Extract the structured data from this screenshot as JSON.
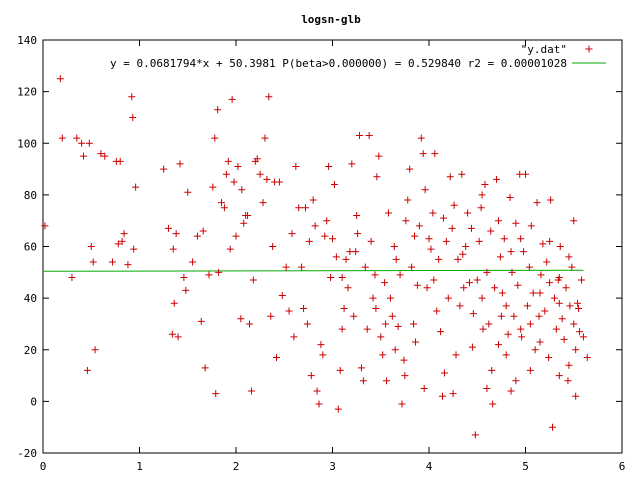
{
  "chart_data": {
    "type": "scatter",
    "title": "logsn-glb",
    "xlabel": "",
    "ylabel": "",
    "xlim": [
      0,
      6
    ],
    "ylim": [
      -20,
      140
    ],
    "x_ticks": [
      "0",
      "1",
      "2",
      "3",
      "4",
      "5",
      "6"
    ],
    "y_ticks": [
      "-20",
      "0",
      "20",
      "40",
      "60",
      "80",
      "100",
      "120",
      "140"
    ],
    "grid": false,
    "legend_position": "top-right",
    "legend": [
      {
        "label": "\"y.dat\"",
        "marker": "plus",
        "color": "#cc0000"
      },
      {
        "label": "y = 0.0681794*x + 50.3981 P(beta>0.000000) = 0.529840 r2 = 0.00001028",
        "marker": "line",
        "color": "#00aa00"
      }
    ],
    "fit_line": {
      "slope": 0.0681794,
      "intercept": 50.3981,
      "x_range": [
        0,
        5.6
      ]
    },
    "series": [
      {
        "name": "\"y.dat\"",
        "color": "#cc0000",
        "points": [
          [
            0.02,
            68
          ],
          [
            0.18,
            125
          ],
          [
            0.2,
            102
          ],
          [
            0.3,
            48
          ],
          [
            0.35,
            102
          ],
          [
            0.4,
            100
          ],
          [
            0.42,
            95
          ],
          [
            0.46,
            12
          ],
          [
            0.48,
            100
          ],
          [
            0.5,
            60
          ],
          [
            0.52,
            54
          ],
          [
            0.54,
            20
          ],
          [
            0.6,
            96
          ],
          [
            0.64,
            95
          ],
          [
            0.72,
            54
          ],
          [
            0.76,
            93
          ],
          [
            0.78,
            61
          ],
          [
            0.8,
            93
          ],
          [
            0.82,
            62
          ],
          [
            0.84,
            65
          ],
          [
            0.88,
            53
          ],
          [
            0.92,
            118
          ],
          [
            0.93,
            110
          ],
          [
            0.94,
            59
          ],
          [
            0.96,
            83
          ],
          [
            1.25,
            90
          ],
          [
            1.3,
            67
          ],
          [
            1.34,
            26
          ],
          [
            1.35,
            59
          ],
          [
            1.36,
            38
          ],
          [
            1.38,
            65
          ],
          [
            1.4,
            25
          ],
          [
            1.42,
            92
          ],
          [
            1.46,
            48
          ],
          [
            1.48,
            43
          ],
          [
            1.5,
            81
          ],
          [
            1.55,
            54
          ],
          [
            1.6,
            64
          ],
          [
            1.64,
            31
          ],
          [
            1.66,
            66
          ],
          [
            1.68,
            13
          ],
          [
            1.72,
            49
          ],
          [
            1.76,
            83
          ],
          [
            1.78,
            102
          ],
          [
            1.79,
            3
          ],
          [
            1.81,
            113
          ],
          [
            1.82,
            50
          ],
          [
            1.85,
            77
          ],
          [
            1.88,
            75
          ],
          [
            1.9,
            88
          ],
          [
            1.92,
            93
          ],
          [
            1.94,
            59
          ],
          [
            1.96,
            117
          ],
          [
            1.98,
            85
          ],
          [
            2.0,
            64
          ],
          [
            2.02,
            91
          ],
          [
            2.05,
            32
          ],
          [
            2.06,
            82
          ],
          [
            2.08,
            69
          ],
          [
            2.1,
            72
          ],
          [
            2.12,
            72
          ],
          [
            2.14,
            30
          ],
          [
            2.16,
            4
          ],
          [
            2.18,
            47
          ],
          [
            2.2,
            93
          ],
          [
            2.22,
            94
          ],
          [
            2.25,
            88
          ],
          [
            2.28,
            77
          ],
          [
            2.3,
            102
          ],
          [
            2.32,
            86
          ],
          [
            2.34,
            118
          ],
          [
            2.36,
            33
          ],
          [
            2.38,
            60
          ],
          [
            2.4,
            85
          ],
          [
            2.42,
            17
          ],
          [
            2.45,
            85
          ],
          [
            2.48,
            41
          ],
          [
            2.52,
            52
          ],
          [
            2.55,
            35
          ],
          [
            2.58,
            65
          ],
          [
            2.6,
            25
          ],
          [
            2.62,
            91
          ],
          [
            2.65,
            75
          ],
          [
            2.68,
            52
          ],
          [
            2.7,
            36
          ],
          [
            2.72,
            75
          ],
          [
            2.74,
            30
          ],
          [
            2.76,
            62
          ],
          [
            2.78,
            10
          ],
          [
            2.8,
            78
          ],
          [
            2.82,
            68
          ],
          [
            2.84,
            4
          ],
          [
            2.86,
            -1
          ],
          [
            2.88,
            22
          ],
          [
            2.9,
            18
          ],
          [
            2.92,
            64
          ],
          [
            2.94,
            70
          ],
          [
            2.96,
            91
          ],
          [
            2.98,
            48
          ],
          [
            3.0,
            63
          ],
          [
            3.02,
            84
          ],
          [
            3.04,
            56
          ],
          [
            3.06,
            -3
          ],
          [
            3.08,
            12
          ],
          [
            3.1,
            28
          ],
          [
            3.12,
            36
          ],
          [
            3.14,
            55
          ],
          [
            3.16,
            44
          ],
          [
            3.18,
            58
          ],
          [
            3.2,
            92
          ],
          [
            3.22,
            33
          ],
          [
            3.24,
            58
          ],
          [
            3.26,
            65
          ],
          [
            3.28,
            103
          ],
          [
            3.3,
            13
          ],
          [
            3.32,
            8
          ],
          [
            3.34,
            52
          ],
          [
            3.36,
            28
          ],
          [
            3.38,
            103
          ],
          [
            3.4,
            62
          ],
          [
            3.42,
            40
          ],
          [
            3.44,
            49
          ],
          [
            3.46,
            87
          ],
          [
            3.48,
            95
          ],
          [
            3.5,
            25
          ],
          [
            3.52,
            18
          ],
          [
            3.54,
            46
          ],
          [
            3.56,
            8
          ],
          [
            3.58,
            73
          ],
          [
            3.6,
            40
          ],
          [
            3.62,
            33
          ],
          [
            3.64,
            60
          ],
          [
            3.66,
            55
          ],
          [
            3.68,
            29
          ],
          [
            3.7,
            49
          ],
          [
            3.72,
            -1
          ],
          [
            3.74,
            16
          ],
          [
            3.76,
            70
          ],
          [
            3.78,
            78
          ],
          [
            3.8,
            90
          ],
          [
            3.82,
            52
          ],
          [
            3.84,
            30
          ],
          [
            3.86,
            23
          ],
          [
            3.88,
            45
          ],
          [
            3.9,
            68
          ],
          [
            3.92,
            102
          ],
          [
            3.94,
            96
          ],
          [
            3.96,
            82
          ],
          [
            3.98,
            44
          ],
          [
            4.0,
            63
          ],
          [
            4.02,
            59
          ],
          [
            4.04,
            73
          ],
          [
            4.06,
            96
          ],
          [
            4.08,
            35
          ],
          [
            4.1,
            55
          ],
          [
            4.12,
            27
          ],
          [
            4.14,
            2
          ],
          [
            4.16,
            11
          ],
          [
            4.18,
            62
          ],
          [
            4.2,
            40
          ],
          [
            4.22,
            87
          ],
          [
            4.24,
            67
          ],
          [
            4.26,
            76
          ],
          [
            4.28,
            18
          ],
          [
            4.3,
            55
          ],
          [
            4.32,
            37
          ],
          [
            4.34,
            88
          ],
          [
            4.36,
            44
          ],
          [
            4.38,
            60
          ],
          [
            4.4,
            73
          ],
          [
            4.42,
            46
          ],
          [
            4.44,
            67
          ],
          [
            4.46,
            34
          ],
          [
            4.48,
            -13
          ],
          [
            4.5,
            47
          ],
          [
            4.52,
            62
          ],
          [
            4.54,
            75
          ],
          [
            4.56,
            28
          ],
          [
            4.58,
            84
          ],
          [
            4.6,
            50
          ],
          [
            4.62,
            30
          ],
          [
            4.64,
            66
          ],
          [
            4.66,
            -1
          ],
          [
            4.68,
            44
          ],
          [
            4.7,
            86
          ],
          [
            4.72,
            22
          ],
          [
            4.74,
            56
          ],
          [
            4.76,
            42
          ],
          [
            4.78,
            63
          ],
          [
            4.8,
            37
          ],
          [
            4.82,
            26
          ],
          [
            4.84,
            79
          ],
          [
            4.86,
            50
          ],
          [
            4.88,
            33
          ],
          [
            4.9,
            69
          ],
          [
            4.92,
            45
          ],
          [
            4.94,
            88
          ],
          [
            4.96,
            25
          ],
          [
            4.98,
            58
          ],
          [
            5.0,
            88
          ],
          [
            5.02,
            37
          ],
          [
            5.04,
            52
          ],
          [
            5.06,
            68
          ],
          [
            5.08,
            42
          ],
          [
            5.1,
            20
          ],
          [
            5.12,
            77
          ],
          [
            5.14,
            33
          ],
          [
            5.16,
            49
          ],
          [
            5.18,
            61
          ],
          [
            5.2,
            35
          ],
          [
            5.22,
            54
          ],
          [
            5.24,
            17
          ],
          [
            5.26,
            78
          ],
          [
            5.28,
            -10
          ],
          [
            5.3,
            40
          ],
          [
            5.32,
            28
          ],
          [
            5.34,
            47
          ],
          [
            5.36,
            60
          ],
          [
            5.38,
            32
          ],
          [
            5.4,
            24
          ],
          [
            5.42,
            44
          ],
          [
            5.44,
            8
          ],
          [
            5.46,
            37
          ],
          [
            5.48,
            52
          ],
          [
            5.5,
            30
          ],
          [
            5.52,
            20
          ],
          [
            5.54,
            38
          ],
          [
            5.56,
            27
          ],
          [
            5.58,
            47
          ],
          [
            5.6,
            25
          ],
          [
            5.64,
            17
          ],
          [
            4.55,
            80
          ],
          [
            4.72,
            70
          ],
          [
            4.85,
            58
          ],
          [
            4.95,
            28
          ],
          [
            5.05,
            12
          ],
          [
            5.15,
            42
          ],
          [
            5.25,
            46
          ],
          [
            5.35,
            10
          ],
          [
            5.45,
            56
          ],
          [
            5.52,
            2
          ],
          [
            4.6,
            5
          ],
          [
            4.8,
            18
          ],
          [
            4.9,
            8
          ],
          [
            3.55,
            30
          ],
          [
            3.75,
            10
          ],
          [
            3.95,
            5
          ],
          [
            4.05,
            47
          ],
          [
            4.25,
            3
          ],
          [
            4.45,
            21
          ],
          [
            4.65,
            12
          ],
          [
            4.85,
            4
          ],
          [
            5.05,
            30
          ],
          [
            5.25,
            62
          ],
          [
            5.35,
            38
          ],
          [
            5.55,
            36
          ],
          [
            5.5,
            70
          ],
          [
            3.1,
            48
          ],
          [
            3.25,
            72
          ],
          [
            3.45,
            36
          ],
          [
            3.65,
            20
          ],
          [
            3.85,
            64
          ],
          [
            4.15,
            71
          ],
          [
            4.35,
            57
          ],
          [
            4.55,
            40
          ],
          [
            4.75,
            33
          ],
          [
            4.95,
            63
          ],
          [
            5.15,
            23
          ],
          [
            5.35,
            48
          ],
          [
            5.45,
            14
          ]
        ]
      }
    ]
  }
}
